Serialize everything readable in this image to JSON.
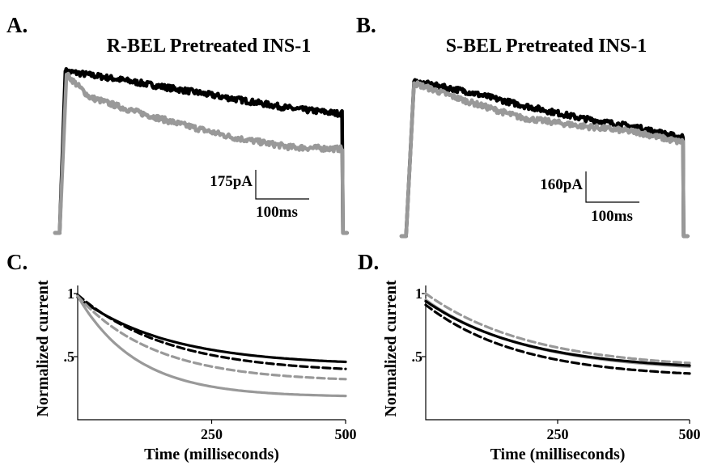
{
  "colors": {
    "control": "#000000",
    "treated": "#999999"
  },
  "panels": {
    "a": {
      "letter": "A.",
      "title": "R-BEL Pretreated INS-1",
      "scale_current": "175pA",
      "scale_time": "100ms"
    },
    "b": {
      "letter": "B.",
      "title": "S-BEL Pretreated INS-1",
      "scale_current": "160pA",
      "scale_time": "100ms"
    },
    "c": {
      "letter": "C."
    },
    "d": {
      "letter": "D."
    }
  },
  "chart_data": [
    {
      "panel": "A",
      "type": "line",
      "title": "R-BEL Pretreated INS-1",
      "series": [
        {
          "color": "#000000",
          "trace": {
            "baseline": 0.0,
            "rise_ms": 8,
            "peak": 1.0,
            "decay": [
              [
                8,
                1.0
              ],
              [
                100,
                0.95
              ],
              [
                200,
                0.89
              ],
              [
                300,
                0.83
              ],
              [
                400,
                0.77
              ],
              [
                480,
                0.74
              ]
            ],
            "end_ms": 490
          }
        },
        {
          "color": "#999999",
          "trace": {
            "baseline": 0.0,
            "rise_ms": 10,
            "peak": 0.98,
            "decay": [
              [
                10,
                0.98
              ],
              [
                50,
                0.84
              ],
              [
                120,
                0.76
              ],
              [
                200,
                0.68
              ],
              [
                300,
                0.59
              ],
              [
                400,
                0.53
              ],
              [
                480,
                0.52
              ]
            ],
            "end_ms": 490
          }
        }
      ]
    },
    {
      "panel": "B",
      "type": "line",
      "title": "S-BEL Pretreated INS-1",
      "series": [
        {
          "color": "#000000",
          "trace": {
            "baseline": 0.0,
            "rise_ms": 12,
            "peak": 0.98,
            "decay": [
              [
                12,
                0.98
              ],
              [
                100,
                0.92
              ],
              [
                200,
                0.83
              ],
              [
                300,
                0.75
              ],
              [
                400,
                0.69
              ],
              [
                470,
                0.63
              ]
            ],
            "end_ms": 480
          }
        },
        {
          "color": "#999999",
          "trace": {
            "baseline": 0.0,
            "rise_ms": 12,
            "peak": 0.97,
            "decay": [
              [
                12,
                0.97
              ],
              [
                100,
                0.86
              ],
              [
                200,
                0.75
              ],
              [
                300,
                0.7
              ],
              [
                400,
                0.66
              ],
              [
                470,
                0.6
              ]
            ],
            "end_ms": 480
          }
        }
      ]
    },
    {
      "panel": "C",
      "type": "line",
      "xlabel": "Time (milliseconds)",
      "ylabel": "Normalized current",
      "xlim": [
        0,
        500
      ],
      "ylim": [
        0,
        1
      ],
      "xticks": [
        250,
        500
      ],
      "yticks": [
        {
          "value": 1,
          "label": "1"
        },
        {
          "value": 0.5,
          "label": ".5"
        }
      ],
      "series": [
        {
          "color": "#000000",
          "dash": "solid",
          "a": 0.54,
          "tau": 170,
          "c": 0.43
        },
        {
          "color": "#000000",
          "dash": "dashed",
          "a": 0.62,
          "tau": 170,
          "c": 0.37
        },
        {
          "color": "#999999",
          "dash": "dashed",
          "a": 0.68,
          "tau": 145,
          "c": 0.3
        },
        {
          "color": "#999999",
          "dash": "solid",
          "a": 0.8,
          "tau": 110,
          "c": 0.18
        }
      ]
    },
    {
      "panel": "D",
      "type": "line",
      "xlabel": "Time (milliseconds)",
      "ylabel": "Normalized current",
      "xlim": [
        0,
        500
      ],
      "ylim": [
        0,
        1
      ],
      "xticks": [
        250,
        500
      ],
      "yticks": [
        {
          "value": 1,
          "label": "1"
        },
        {
          "value": 0.5,
          "label": ".5"
        }
      ],
      "series": [
        {
          "color": "#999999",
          "dash": "dashed",
          "a": 0.6,
          "tau": 200,
          "c": 0.4
        },
        {
          "color": "#999999",
          "dash": "solid",
          "a": 0.57,
          "tau": 190,
          "c": 0.38
        },
        {
          "color": "#000000",
          "dash": "solid",
          "a": 0.55,
          "tau": 190,
          "c": 0.39
        },
        {
          "color": "#000000",
          "dash": "dashed",
          "a": 0.58,
          "tau": 180,
          "c": 0.33
        }
      ]
    }
  ]
}
